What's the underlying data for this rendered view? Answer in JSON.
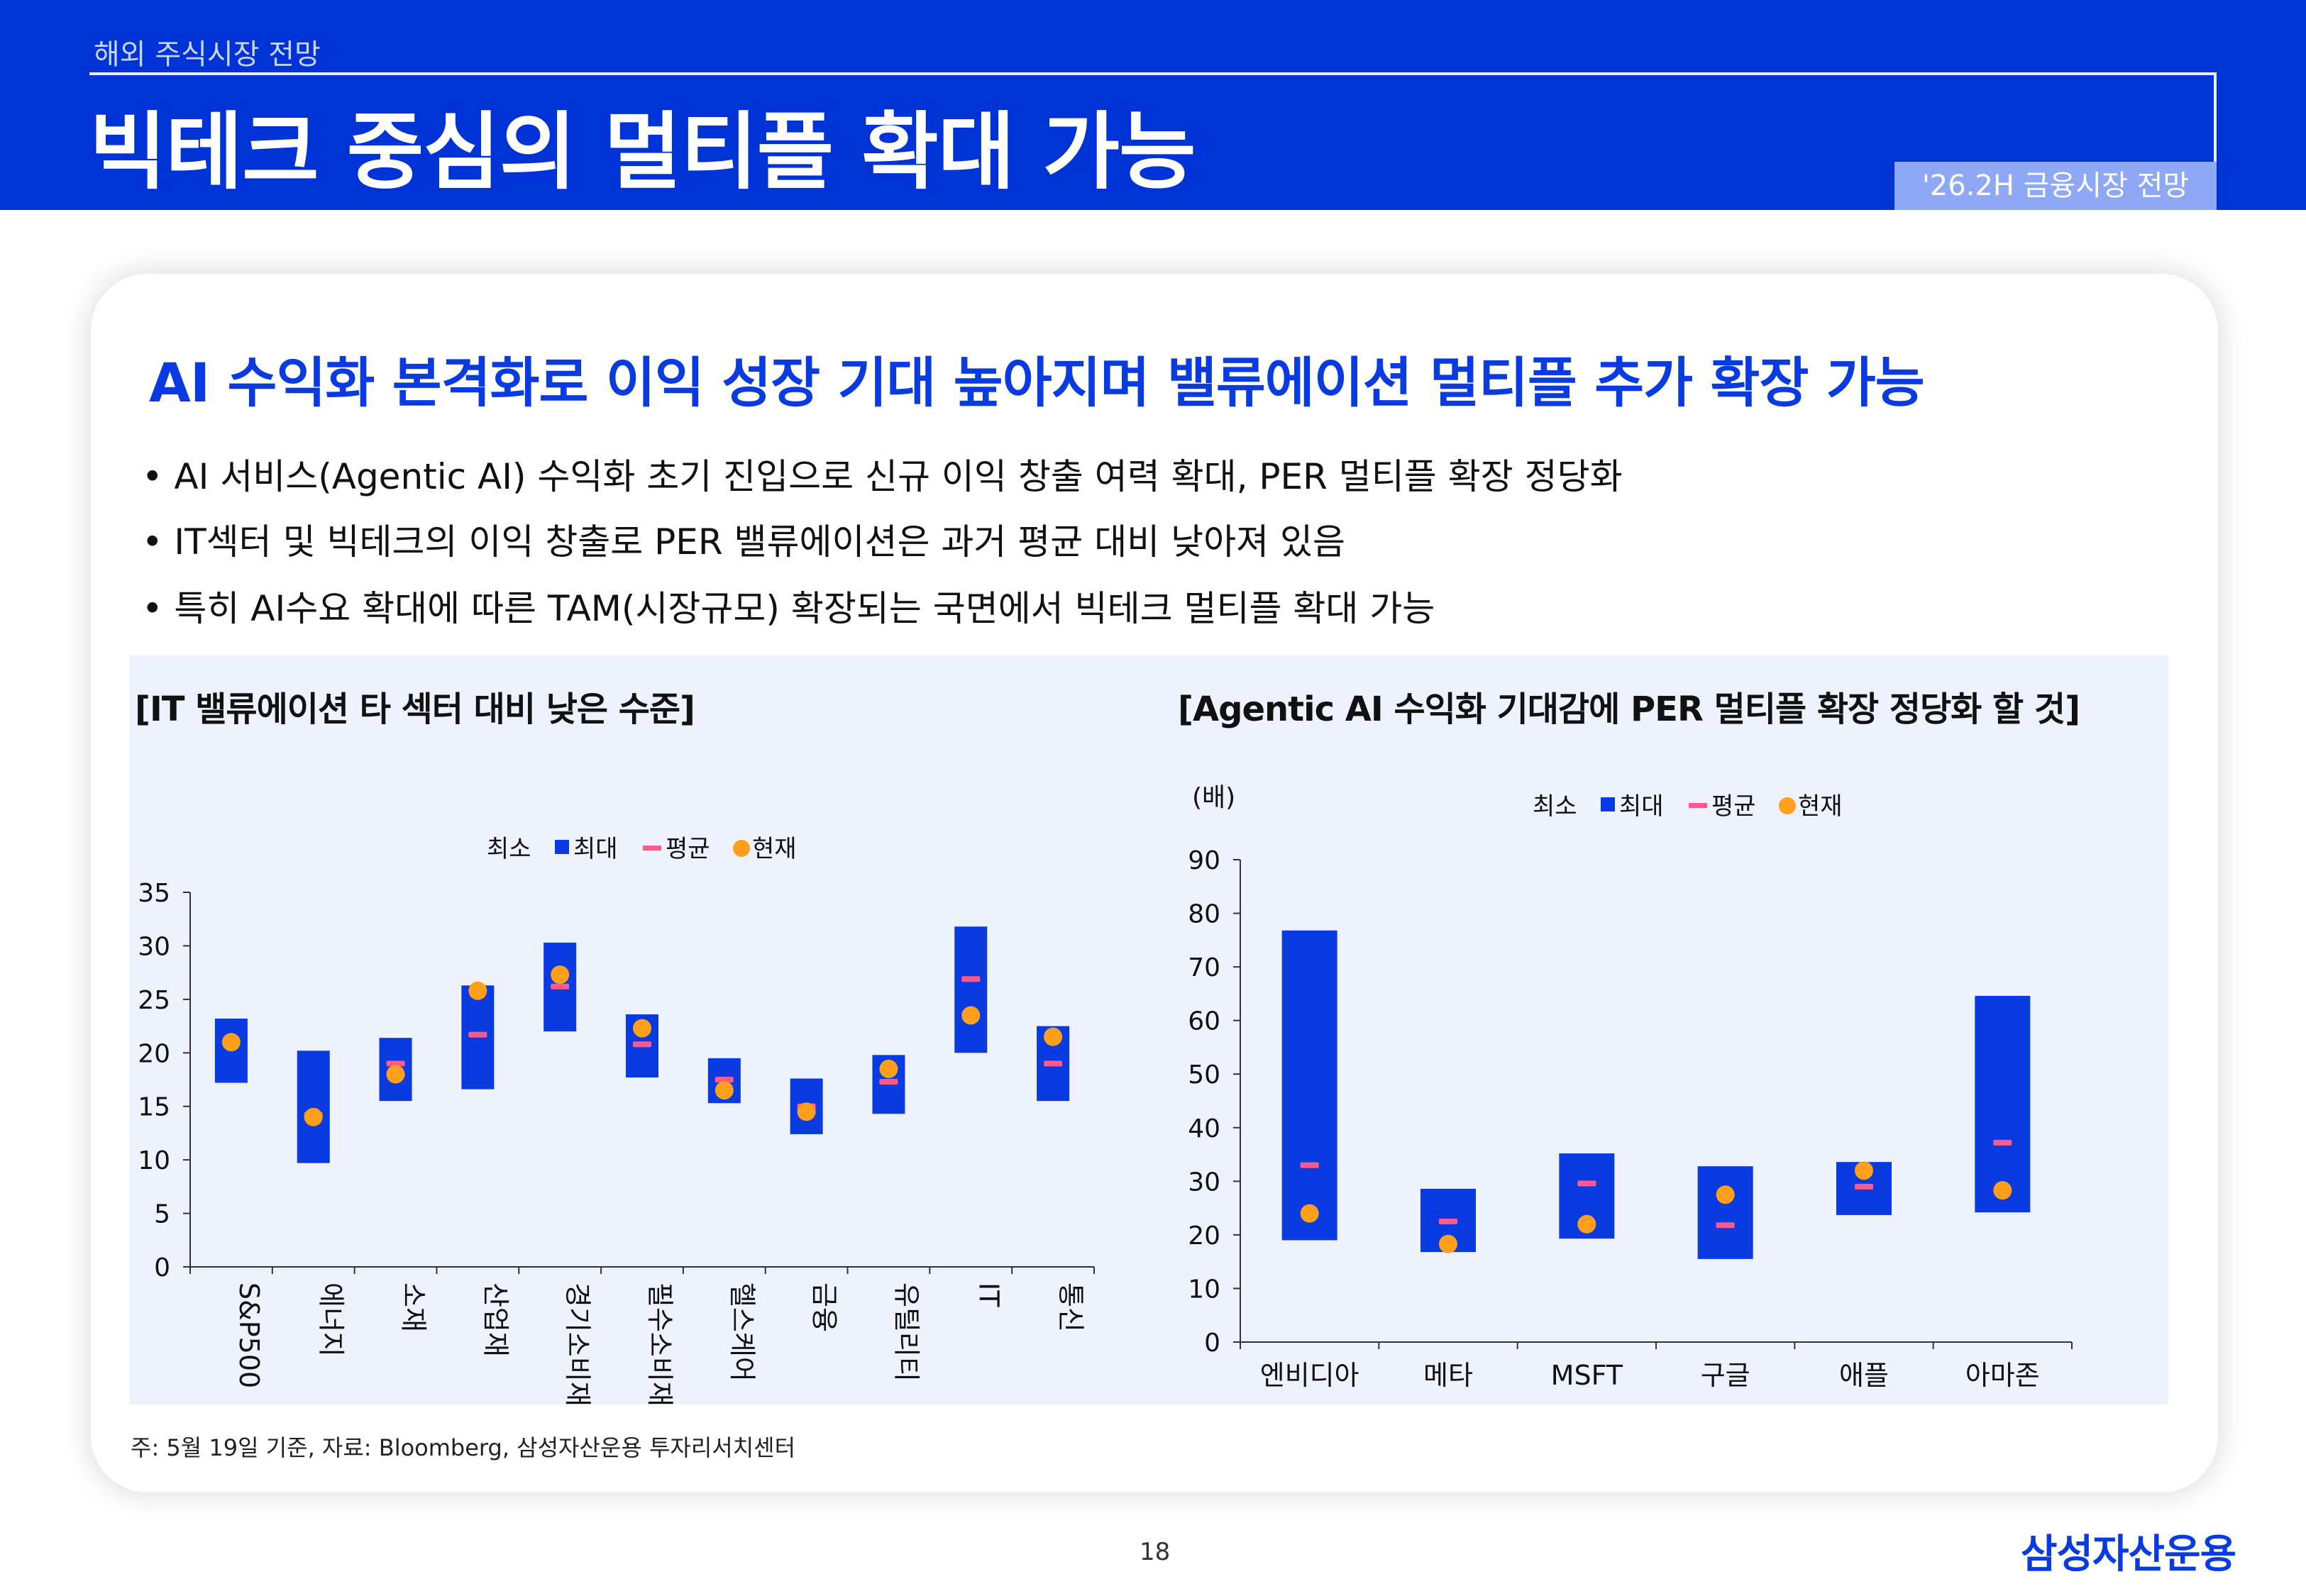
{
  "header": {
    "section": "해외 주식시장 전망",
    "title": "빅테크 중심의 멀티플 확대 가능",
    "tag": "'26.2H 금융시장 전망"
  },
  "subtitle": "AI 수익화 본격화로 이익 성장 기대 높아지며 밸류에이션 멀티플 추가 확장 가능",
  "bullets": [
    "• AI 서비스(Agentic AI) 수익화 초기 진입으로 신규 이익 창출 여력 확대, PER 멀티플 확장 정당화",
    "• IT섹터 및 빅테크의 이익 창출로 PER 밸류에이션은 과거 평균 대비 낮아져 있음",
    "• 특히 AI수요 확대에 따른 TAM(시장규모) 확장되는 국면에서 빅테크 멀티플 확대 가능"
  ],
  "colors": {
    "bar": "#0a3be0",
    "avg": "#ff5a8a",
    "current": "#ff9f1a",
    "brand": "#0033d6"
  },
  "chart_data": [
    {
      "type": "bar",
      "title": "[IT 밸류에이션 타 섹터 대비 낮은 수준]",
      "ylabel": "",
      "ylim": [
        0,
        35
      ],
      "yticks": [
        0,
        5,
        10,
        15,
        20,
        25,
        30,
        35
      ],
      "legend": [
        "최소",
        "최대",
        "평균",
        "현재"
      ],
      "legend_placement": "top-center",
      "categories": [
        "S&P500",
        "에너지",
        "소재",
        "산업재",
        "경기소비재",
        "필수소비재",
        "헬스케어",
        "금융",
        "유틸리티",
        "IT",
        "통신"
      ],
      "min": [
        17.2,
        9.7,
        15.5,
        16.6,
        22.0,
        17.7,
        15.3,
        12.4,
        14.3,
        20.0,
        15.5
      ],
      "max": [
        23.2,
        20.2,
        21.4,
        26.3,
        30.3,
        23.6,
        19.5,
        17.6,
        19.8,
        31.8,
        22.5
      ],
      "avg": [
        null,
        14.2,
        19.0,
        21.7,
        26.2,
        20.8,
        17.5,
        15.0,
        17.3,
        26.9,
        19.0
      ],
      "current": [
        21.0,
        14.0,
        18.0,
        25.8,
        27.3,
        22.3,
        16.5,
        14.5,
        18.5,
        23.5,
        21.5
      ]
    },
    {
      "type": "bar",
      "title": "[Agentic AI  수익화 기대감에 PER 멀티플 확장 정당화 할 것]",
      "ylabel": "(배)",
      "ylim": [
        0,
        90
      ],
      "yticks": [
        0,
        10,
        20,
        30,
        40,
        50,
        60,
        70,
        80,
        90
      ],
      "legend": [
        "최소",
        "최대",
        "평균",
        "현재"
      ],
      "legend_placement": "top-center",
      "categories": [
        "엔비디아",
        "메타",
        "MSFT",
        "구글",
        "애플",
        "아마존"
      ],
      "min": [
        19.0,
        16.8,
        19.3,
        15.5,
        23.7,
        24.2
      ],
      "max": [
        76.8,
        28.6,
        35.2,
        32.8,
        33.6,
        64.6
      ],
      "avg": [
        33.0,
        22.5,
        29.6,
        21.8,
        29.0,
        37.2
      ],
      "current": [
        24.0,
        18.3,
        22.0,
        27.5,
        32.0,
        28.3
      ]
    }
  ],
  "footnote": "주: 5월 19일 기준, 자료: Bloomberg, 삼성자산운용 투자리서치센터",
  "page_number": "18",
  "logo": "삼성자산운용"
}
